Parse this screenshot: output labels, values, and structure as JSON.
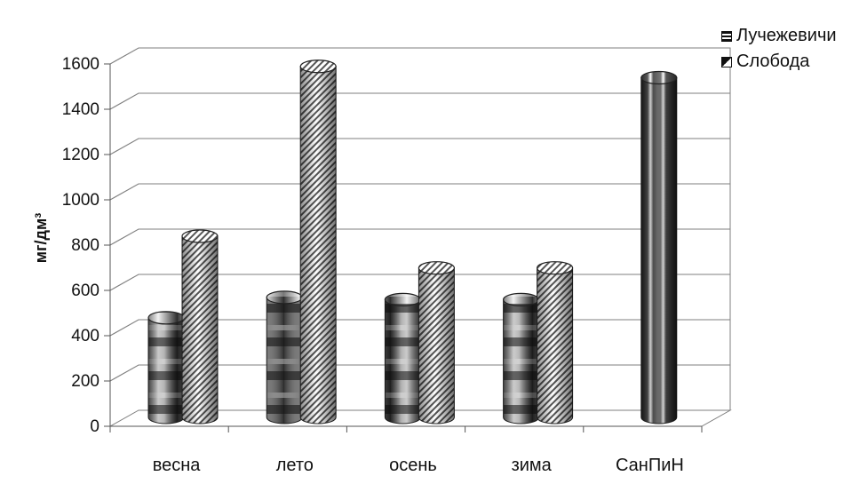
{
  "chart_data": {
    "type": "bar",
    "title": "",
    "xlabel": "",
    "ylabel": "мг/дм³",
    "ylim": [
      0,
      1600
    ],
    "yticks": [
      0,
      200,
      400,
      600,
      800,
      1000,
      1200,
      1400,
      1600
    ],
    "categories": [
      "весна",
      "лето",
      "осень",
      "зима",
      "СанПиН"
    ],
    "series": [
      {
        "name": "Лучежевичи",
        "values": [
          440,
          530,
          520,
          520,
          null
        ]
      },
      {
        "name": "Слобода",
        "values": [
          800,
          1550,
          660,
          660,
          null
        ]
      }
    ],
    "norm": {
      "category": "СанПиН",
      "value": 1500
    },
    "grid": true,
    "legend_position": "top-right"
  },
  "legend": {
    "items": [
      {
        "label": "Лучежевичи"
      },
      {
        "label": "Слобода"
      }
    ]
  },
  "colors": {
    "series_1": "#222222",
    "series_2": "#888888",
    "norm": "#4a4a4a",
    "grid": "#7f7f7f"
  }
}
